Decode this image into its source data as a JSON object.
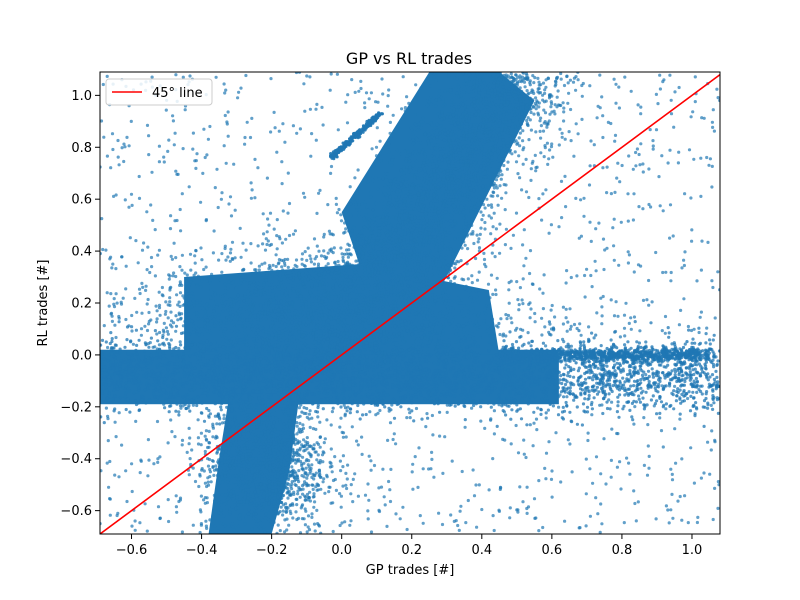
{
  "chart_data": {
    "type": "scatter",
    "title": "GP vs RL trades",
    "xlabel": "GP trades [#]",
    "ylabel": "RL trades [#]",
    "xlim": [
      -0.69,
      1.08
    ],
    "ylim": [
      -0.69,
      1.09
    ],
    "xticks": [
      -0.6,
      -0.4,
      -0.2,
      0.0,
      0.2,
      0.4,
      0.6,
      0.8,
      1.0
    ],
    "yticks": [
      -0.6,
      -0.4,
      -0.2,
      0.0,
      0.2,
      0.4,
      0.6,
      0.8,
      1.0
    ],
    "grid": false,
    "legend_placement": "upper-left",
    "series": [
      {
        "kind": "scatter",
        "color": "#1f77b4",
        "clusters": [
          {
            "description": "horizontal band near y=0",
            "x_range": [
              -0.69,
              1.08
            ],
            "y_range": [
              -0.2,
              0.05
            ]
          },
          {
            "description": "central mass",
            "x_range": [
              -0.55,
              0.5
            ],
            "y_range": [
              -0.05,
              0.35
            ]
          },
          {
            "description": "upper diagonal arm",
            "x_range": [
              0.0,
              0.62
            ],
            "y_range": [
              0.3,
              1.09
            ]
          },
          {
            "description": "lower vertical lobe",
            "x_range": [
              -0.45,
              -0.05
            ],
            "y_range": [
              -0.69,
              -0.15
            ]
          },
          {
            "description": "small streak",
            "x_range": [
              -0.03,
              0.12
            ],
            "y_range": [
              0.76,
              0.93
            ]
          }
        ]
      },
      {
        "name": "45° line",
        "kind": "line",
        "color": "#ff0000",
        "x": [
          -0.69,
          1.08
        ],
        "y": [
          -0.69,
          1.08
        ]
      }
    ]
  }
}
